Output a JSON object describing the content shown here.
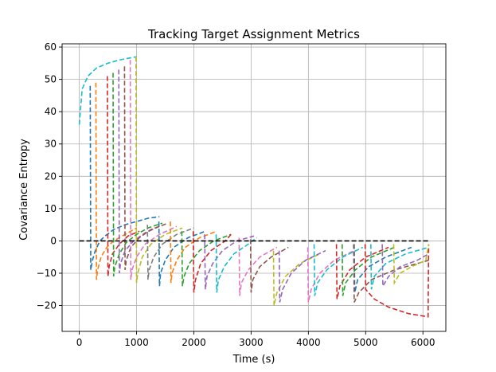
{
  "chart_data": {
    "type": "line",
    "title": "Tracking Target Assignment Metrics",
    "xlabel": "Time (s)",
    "ylabel": "Covariance Entropy",
    "xlim": [
      -300,
      6400
    ],
    "ylim": [
      -28,
      61
    ],
    "xticks": [
      0,
      1000,
      2000,
      3000,
      4000,
      5000,
      6000
    ],
    "yticks": [
      -20,
      -10,
      0,
      10,
      20,
      30,
      40,
      50,
      60
    ],
    "xtick_labels": [
      "0",
      "1000",
      "2000",
      "3000",
      "4000",
      "5000",
      "6000"
    ],
    "ytick_labels": [
      "−20",
      "−10",
      "0",
      "10",
      "20",
      "30",
      "40",
      "50",
      "60"
    ],
    "grid": true,
    "line_style": "dashed",
    "reference_line": {
      "y": 0,
      "color": "#000000",
      "style": "dashed",
      "x_range": [
        0,
        6100
      ]
    },
    "palette": [
      "#1f77b4",
      "#ff7f0e",
      "#2ca02c",
      "#d62728",
      "#9467bd",
      "#8c564b",
      "#e377c2",
      "#7f7f7f",
      "#bcbd22",
      "#17becf"
    ],
    "series": [
      {
        "color": "#17becf",
        "x": [
          0,
          50,
          150,
          300,
          500,
          700,
          1000
        ],
        "y": [
          36,
          47,
          51,
          53.5,
          55,
          56,
          57
        ]
      },
      {
        "color": "#1f77b4",
        "x": [
          190,
          200,
          230,
          280,
          360,
          450,
          600,
          800,
          1000,
          1200,
          1400
        ],
        "y": [
          48,
          -9,
          -6,
          -3,
          0,
          1.5,
          3.5,
          5,
          6,
          7,
          7.5
        ]
      },
      {
        "color": "#ff7f0e",
        "x": [
          290,
          300,
          320,
          380,
          480,
          600,
          800,
          1000
        ],
        "y": [
          49,
          -12,
          -9,
          -5,
          -2,
          0,
          2,
          4
        ]
      },
      {
        "color": "#d62728",
        "x": [
          490,
          500,
          520,
          580,
          700,
          850,
          1050
        ],
        "y": [
          51,
          -11,
          -8,
          -4,
          -1,
          1.5,
          3
        ]
      },
      {
        "color": "#2ca02c",
        "x": [
          590,
          600,
          620,
          700,
          820,
          1000,
          1200,
          1450
        ],
        "y": [
          52,
          -11,
          -8,
          -4,
          -0.5,
          2,
          4,
          5.5
        ]
      },
      {
        "color": "#9467bd",
        "x": [
          690,
          700,
          720,
          800,
          950,
          1150,
          1400
        ],
        "y": [
          53,
          -10,
          -7,
          -3,
          0,
          2.5,
          4.5
        ]
      },
      {
        "color": "#8c564b",
        "x": [
          790,
          800,
          820,
          900,
          1050,
          1250,
          1550
        ],
        "y": [
          54,
          -9,
          -6,
          -2,
          1,
          3.5,
          5.5
        ]
      },
      {
        "color": "#e377c2",
        "x": [
          890,
          900,
          920,
          1000,
          1150,
          1400,
          1700
        ],
        "y": [
          56,
          -12,
          -9,
          -5,
          -1,
          2,
          4.5
        ]
      },
      {
        "color": "#bcbd22",
        "x": [
          990,
          1000,
          1020,
          1100,
          1250,
          1500,
          1800
        ],
        "y": [
          57,
          -13,
          -10,
          -5,
          -1,
          2,
          4
        ]
      },
      {
        "color": "#7f7f7f",
        "x": [
          1190,
          1200,
          1220,
          1300,
          1450,
          1700,
          2000
        ],
        "y": [
          5,
          -12,
          -9,
          -5,
          -1,
          2,
          4
        ]
      },
      {
        "color": "#1f77b4",
        "x": [
          1390,
          1400,
          1420,
          1500,
          1650,
          1900,
          2200
        ],
        "y": [
          6,
          -14,
          -10,
          -6,
          -2,
          1,
          3
        ]
      },
      {
        "color": "#ff7f0e",
        "x": [
          1590,
          1600,
          1620,
          1700,
          1850,
          2100,
          2400
        ],
        "y": [
          6,
          -13,
          -10,
          -6,
          -2,
          1,
          3
        ]
      },
      {
        "color": "#2ca02c",
        "x": [
          1790,
          1800,
          1830,
          1920,
          2100,
          2350,
          2650
        ],
        "y": [
          3,
          -14,
          -11,
          -7,
          -3,
          0,
          2
        ]
      },
      {
        "color": "#d62728",
        "x": [
          1990,
          2000,
          2030,
          2120,
          2300,
          2550,
          2650
        ],
        "y": [
          3,
          -16,
          -12,
          -7,
          -3,
          0,
          2
        ]
      },
      {
        "color": "#9467bd",
        "x": [
          2190,
          2200,
          2230,
          2330,
          2500,
          2750,
          3050
        ],
        "y": [
          2,
          -15,
          -11,
          -7,
          -3,
          0,
          1.5
        ]
      },
      {
        "color": "#17becf",
        "x": [
          2390,
          2400,
          2430,
          2530,
          2700,
          2950,
          3100
        ],
        "y": [
          2,
          -16,
          -12,
          -8,
          -4,
          -1,
          1
        ]
      },
      {
        "color": "#e377c2",
        "x": [
          2790,
          2800,
          2830,
          2950,
          3150,
          3450
        ],
        "y": [
          1,
          -17,
          -13,
          -9,
          -5,
          -2
        ]
      },
      {
        "color": "#8c564b",
        "x": [
          2990,
          3000,
          3030,
          3150,
          3350,
          3650
        ],
        "y": [
          0.5,
          -16,
          -12,
          -8,
          -5,
          -2
        ]
      },
      {
        "color": "#bcbd22",
        "x": [
          3390,
          3400,
          3450,
          3600,
          3850,
          4200
        ],
        "y": [
          -3,
          -20,
          -16,
          -11,
          -7,
          -4
        ]
      },
      {
        "color": "#9467bd",
        "x": [
          3490,
          3500,
          3550,
          3700,
          3950,
          4300
        ],
        "y": [
          -3,
          -19,
          -15,
          -10,
          -6,
          -3
        ]
      },
      {
        "color": "#e377c2",
        "x": [
          3990,
          4000,
          4050,
          4200,
          4450,
          4800
        ],
        "y": [
          -2,
          -19,
          -15,
          -10,
          -6,
          -3
        ]
      },
      {
        "color": "#17becf",
        "x": [
          4100,
          4110,
          4160,
          4320,
          4600,
          4950
        ],
        "y": [
          -1,
          -17,
          -13,
          -9,
          -5,
          -2
        ]
      },
      {
        "color": "#d62728",
        "x": [
          4490,
          4500,
          4550,
          4720,
          5000,
          5400
        ],
        "y": [
          -1,
          -18,
          -14,
          -9,
          -5,
          -2
        ]
      },
      {
        "color": "#2ca02c",
        "x": [
          4590,
          4600,
          4650,
          4820,
          5100,
          5500
        ],
        "y": [
          -1,
          -17,
          -13,
          -9,
          -5,
          -2
        ]
      },
      {
        "color": "#1f77b4",
        "x": [
          4800,
          4810,
          4860,
          5050,
          5350,
          5800
        ],
        "y": [
          -1,
          -16,
          -12,
          -8,
          -5,
          -2
        ]
      },
      {
        "color": "#8c564b",
        "x": [
          4790,
          4800,
          4880,
          5100,
          5500,
          6100
        ],
        "y": [
          -1,
          -19,
          -16,
          -12,
          -9,
          -6
        ]
      },
      {
        "color": "#17becf",
        "x": [
          5090,
          5100,
          5150,
          5350,
          5700,
          6100
        ],
        "y": [
          -1,
          -15,
          -11,
          -7,
          -4,
          -2
        ]
      },
      {
        "color": "#d62728",
        "x": [
          4990,
          5000,
          5150,
          5400,
          5750,
          6090,
          6100
        ],
        "y": [
          -1,
          -15,
          -18,
          -20.5,
          -22.5,
          -23.5,
          -1
        ]
      },
      {
        "color": "#9467bd",
        "x": [
          5290,
          5300,
          5400,
          5600,
          5900,
          6100
        ],
        "y": [
          -1,
          -14,
          -11,
          -8,
          -6,
          -4
        ]
      },
      {
        "color": "#bcbd22",
        "x": [
          5490,
          5500,
          5600,
          5800,
          6050,
          6100
        ],
        "y": [
          -1,
          -13,
          -10,
          -8,
          -6,
          -1
        ]
      }
    ]
  }
}
